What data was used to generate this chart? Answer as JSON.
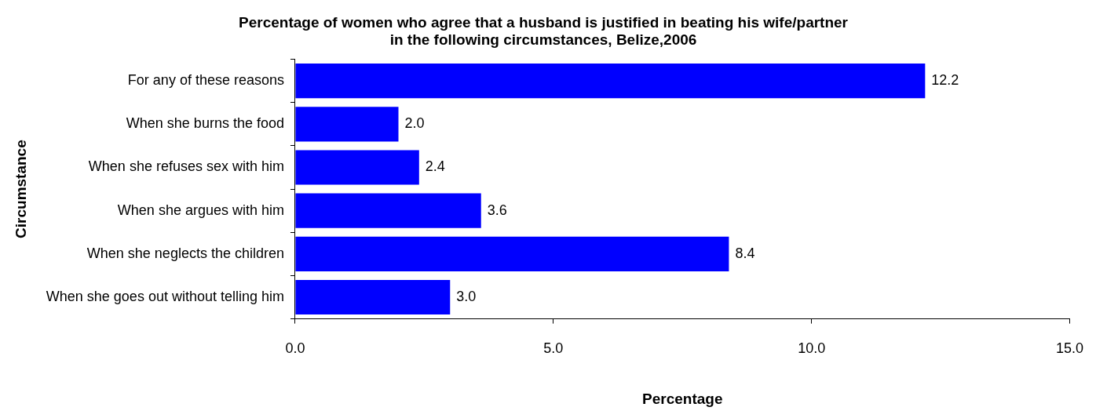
{
  "chart_data": {
    "type": "bar",
    "orientation": "horizontal",
    "title": "Percentage of women who agree that a husband is justified in beating his wife/partner in the following circumstances, Belize,2006",
    "xlabel": "Percentage",
    "ylabel": "Circumstance",
    "categories": [
      "For any of these reasons",
      "When she burns the food",
      "When she refuses sex with him",
      "When she argues with him",
      "When she neglects the children",
      "When she goes out without telling him"
    ],
    "values": [
      12.2,
      2.0,
      2.4,
      3.6,
      8.4,
      3.0
    ],
    "value_labels": [
      "12.2",
      "2.0",
      "2.4",
      "3.6",
      "8.4",
      "3.0"
    ],
    "color": "#0000ff",
    "xlim": [
      0,
      15
    ],
    "xticks": [
      {
        "value": 0,
        "label": "0.0"
      },
      {
        "value": 5,
        "label": "5.0"
      },
      {
        "value": 10,
        "label": "10.0"
      },
      {
        "value": 15,
        "label": "15.0"
      }
    ],
    "grid": false,
    "legend": false
  }
}
